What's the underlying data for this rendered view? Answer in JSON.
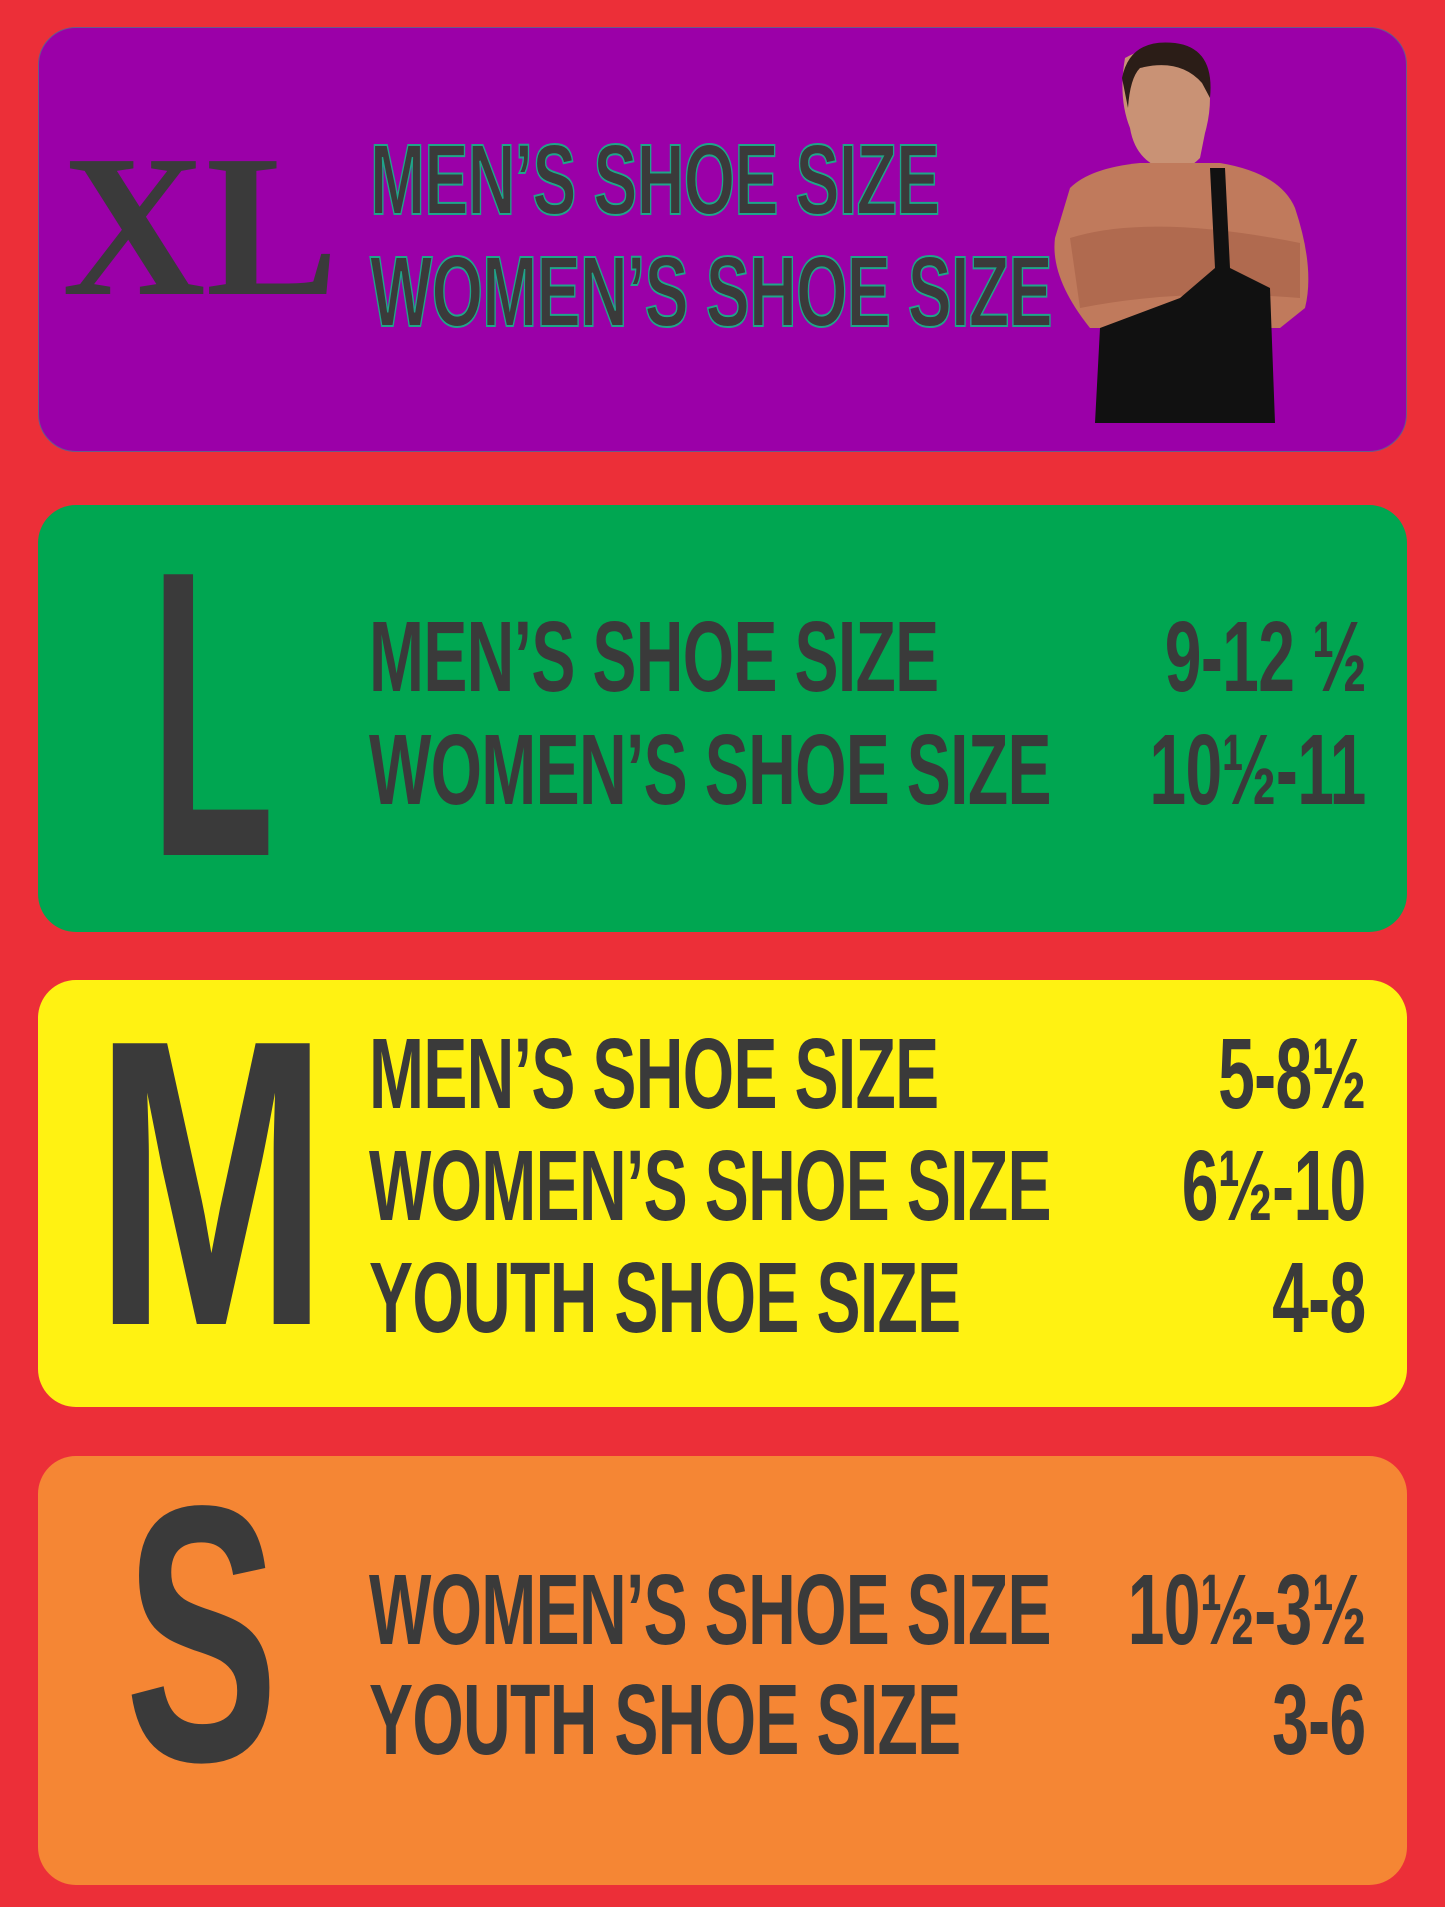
{
  "colors": {
    "background": "#ec2f38",
    "xl": "#9b00a8",
    "l": "#00a651",
    "m": "#fff212",
    "s": "#f58634",
    "text": "#3a3a3a"
  },
  "sizes": [
    {
      "letter": "XL",
      "rows": [
        {
          "label": "MEN’S SHOE SIZE",
          "value": ""
        },
        {
          "label": "WOMEN’S SHOE SIZE",
          "value": ""
        }
      ],
      "image": "wrestler-photo"
    },
    {
      "letter": "L",
      "rows": [
        {
          "label": "MEN’S SHOE SIZE",
          "value": "9-12 ½"
        },
        {
          "label": "WOMEN’S SHOE SIZE",
          "value": "10½-11"
        }
      ]
    },
    {
      "letter": "M",
      "rows": [
        {
          "label": "MEN’S SHOE SIZE",
          "value": "5-8½"
        },
        {
          "label": "WOMEN’S SHOE SIZE",
          "value": "6½-10"
        },
        {
          "label": "YOUTH SHOE SIZE",
          "value": "4-8"
        }
      ]
    },
    {
      "letter": "S",
      "rows": [
        {
          "label": "WOMEN’S SHOE SIZE",
          "value": "10½-3½"
        },
        {
          "label": "YOUTH SHOE SIZE",
          "value": "3-6"
        }
      ]
    }
  ]
}
